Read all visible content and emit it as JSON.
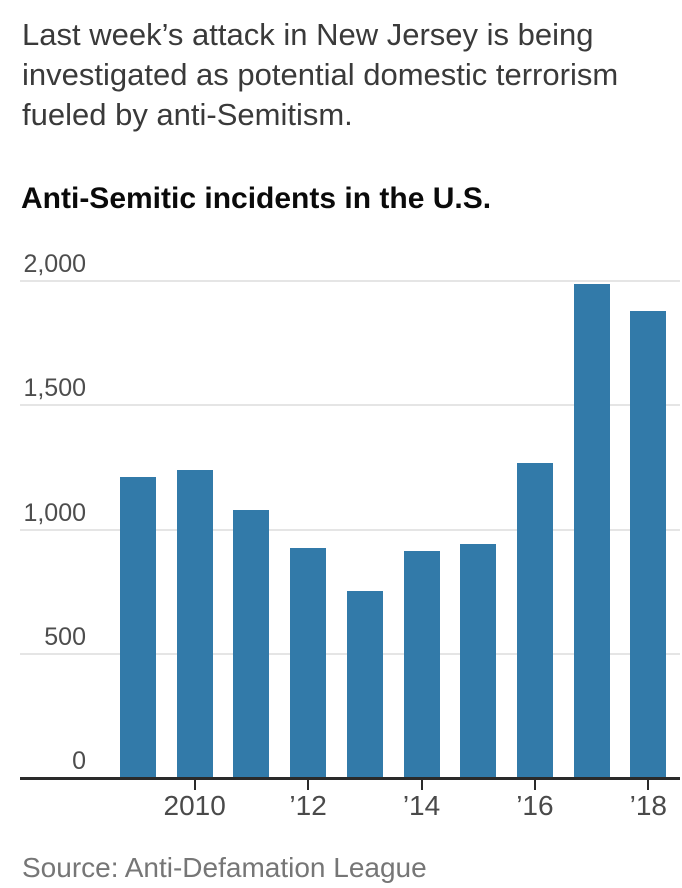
{
  "page": {
    "headline_lines": [
      "Last week’s attack in New Jersey is being",
      "investigated as potential domestic terrorism",
      "fueled by anti-Semitism."
    ],
    "source": "Source: Anti-Defamation League"
  },
  "chart_data": {
    "type": "bar",
    "title": "Anti-Semitic incidents in the U.S.",
    "categories": [
      2009,
      2010,
      2011,
      2012,
      2013,
      2014,
      2015,
      2016,
      2017,
      2018
    ],
    "values": [
      1211,
      1239,
      1080,
      927,
      751,
      912,
      942,
      1267,
      1986,
      1879
    ],
    "xlabel": "",
    "ylabel": "",
    "ylim": [
      0,
      2000
    ],
    "yticks": [
      0,
      500,
      1000,
      1500,
      2000
    ],
    "ytick_labels": [
      "0",
      "500",
      "1,000",
      "1,500",
      "2,000"
    ],
    "xticks": [
      {
        "year": 2010,
        "label": "2010"
      },
      {
        "year": 2012,
        "label": "’12"
      },
      {
        "year": 2014,
        "label": "’14"
      },
      {
        "year": 2016,
        "label": "’16"
      },
      {
        "year": 2018,
        "label": "’18"
      }
    ],
    "grid": true,
    "legend": false,
    "bar_color": "#327aa9",
    "gridline_color": "#e5e5e5",
    "axis_color": "#2a2a2a",
    "label_color": "#4d4d4d"
  }
}
